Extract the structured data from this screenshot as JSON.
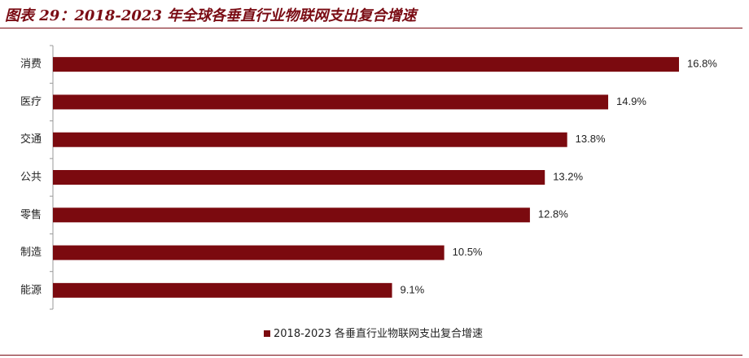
{
  "figure_title": "图表 29：2018-2023 年全球各垂直行业物联网支出复合增速",
  "colors": {
    "bar": "#7b0a0f",
    "accent": "#7a0c14"
  },
  "chart_data": {
    "type": "bar",
    "orientation": "horizontal",
    "title": "",
    "xlabel": "",
    "ylabel": "",
    "categories": [
      "消费",
      "医疗",
      "交通",
      "公共",
      "零售",
      "制造",
      "能源"
    ],
    "series": [
      {
        "name": "2018-2023 各垂直行业物联网支出复合增速",
        "values": [
          16.8,
          14.9,
          13.8,
          13.2,
          12.8,
          10.5,
          9.1
        ],
        "value_labels": [
          "16.8%",
          "14.9%",
          "13.8%",
          "13.2%",
          "12.8%",
          "10.5%",
          "9.1%"
        ]
      }
    ],
    "xlim": [
      0,
      16.8
    ],
    "legend_position": "bottom",
    "grid": false
  }
}
